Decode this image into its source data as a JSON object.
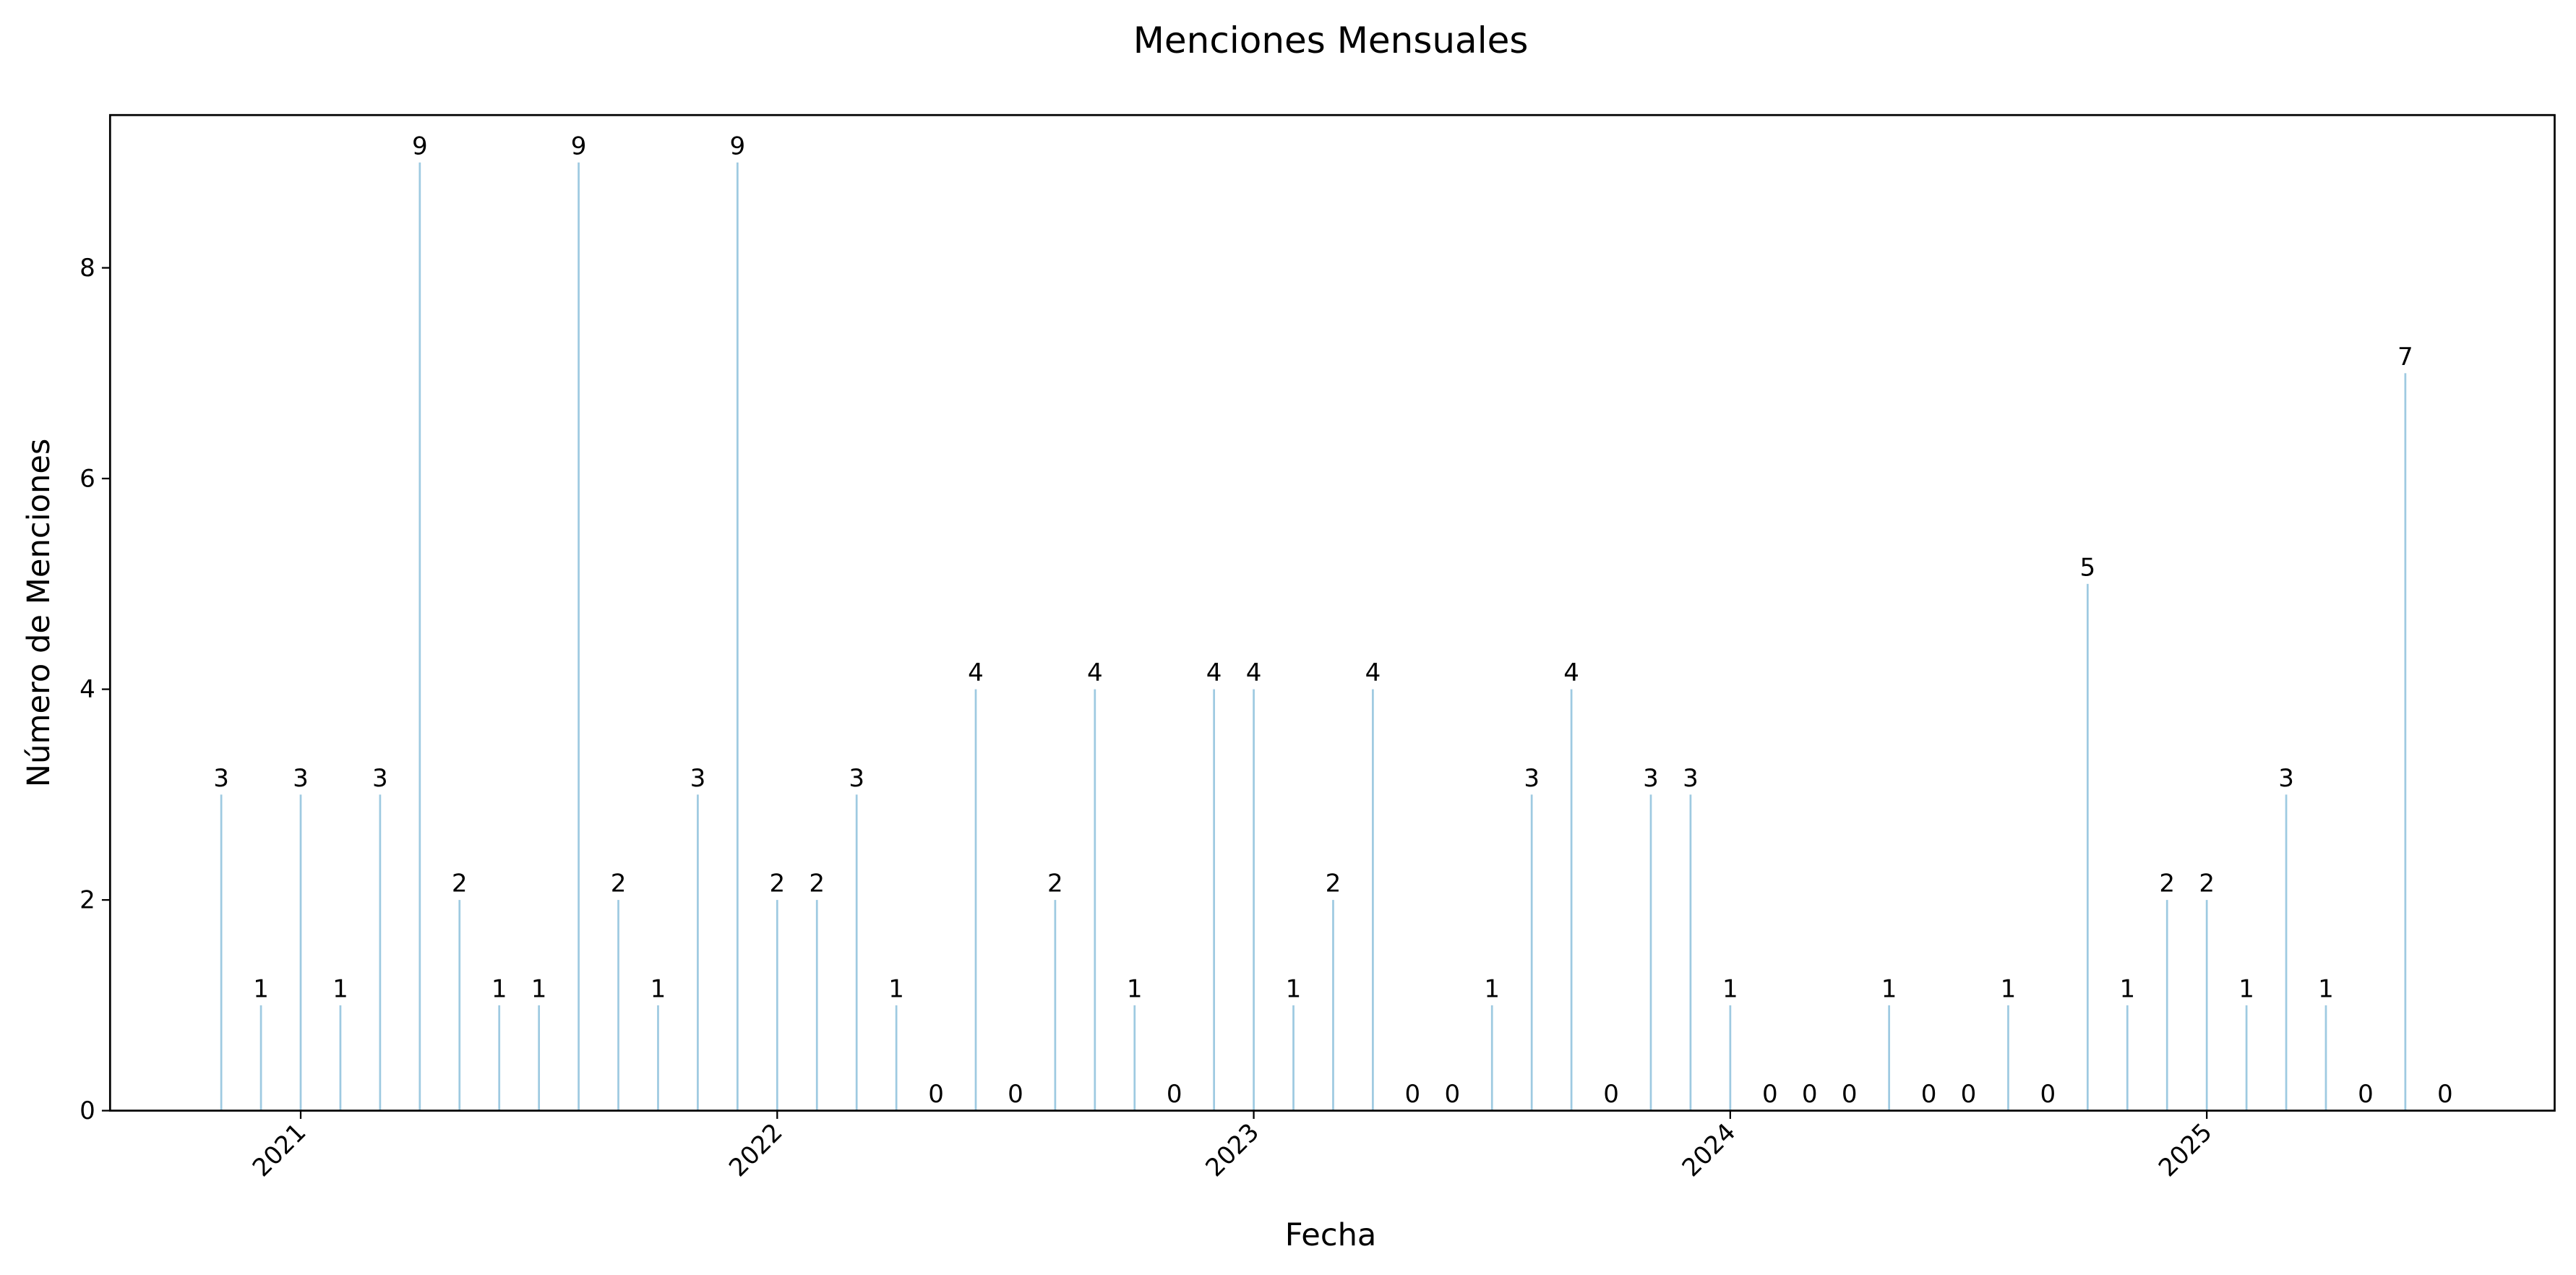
{
  "chart_data": {
    "type": "bar",
    "title": "Menciones Mensuales",
    "x_label": "Fecha",
    "y_label": "Número de Menciones",
    "x": [
      "2020-10",
      "2020-11",
      "2020-12",
      "2021-01",
      "2021-02",
      "2021-03",
      "2021-04",
      "2021-05",
      "2021-06",
      "2021-07",
      "2021-08",
      "2021-09",
      "2021-10",
      "2021-11",
      "2021-12",
      "2022-01",
      "2022-02",
      "2022-03",
      "2022-04",
      "2022-05",
      "2022-06",
      "2022-07",
      "2022-08",
      "2022-09",
      "2022-10",
      "2022-11",
      "2022-12",
      "2023-01",
      "2023-02",
      "2023-03",
      "2023-04",
      "2023-05",
      "2023-06",
      "2023-07",
      "2023-08",
      "2023-09",
      "2023-10",
      "2023-11",
      "2023-12",
      "2024-01",
      "2024-02",
      "2024-03",
      "2024-04",
      "2024-05",
      "2024-06",
      "2024-07",
      "2024-08",
      "2024-09",
      "2024-10",
      "2024-11",
      "2024-12",
      "2025-01",
      "2025-02",
      "2025-03",
      "2025-04",
      "2025-05",
      "2025-06"
    ],
    "values": [
      3,
      1,
      3,
      1,
      3,
      9,
      2,
      1,
      1,
      9,
      2,
      1,
      3,
      9,
      2,
      2,
      3,
      1,
      0,
      4,
      0,
      2,
      4,
      1,
      0,
      4,
      4,
      1,
      2,
      4,
      0,
      0,
      1,
      3,
      4,
      0,
      3,
      3,
      1,
      0,
      0,
      0,
      1,
      0,
      0,
      1,
      0,
      5,
      1,
      2,
      2,
      1,
      3,
      1,
      0,
      7,
      0
    ],
    "color": "#9ecae1",
    "xlim": [
      2020.6,
      2025.73
    ],
    "xticks": [
      2021,
      2022,
      2023,
      2024,
      2025
    ],
    "ylim": [
      0,
      9.45
    ],
    "yticks": [
      0,
      2,
      4,
      6,
      8
    ]
  }
}
